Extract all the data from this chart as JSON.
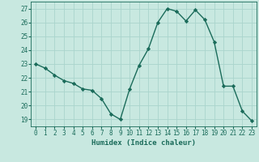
{
  "x": [
    0,
    1,
    2,
    3,
    4,
    5,
    6,
    7,
    8,
    9,
    10,
    11,
    12,
    13,
    14,
    15,
    16,
    17,
    18,
    19,
    20,
    21,
    22,
    23
  ],
  "y": [
    23.0,
    22.7,
    22.2,
    21.8,
    21.6,
    21.2,
    21.1,
    20.5,
    19.4,
    19.0,
    21.2,
    22.9,
    24.1,
    26.0,
    27.0,
    26.8,
    26.1,
    26.9,
    26.2,
    24.6,
    21.4,
    21.4,
    19.6,
    18.9
  ],
  "line_color": "#1a6b5a",
  "marker": "D",
  "markersize": 2.2,
  "linewidth": 1.0,
  "bg_color": "#c8e8e0",
  "grid_color": "#aad4cc",
  "xlabel": "Humidex (Indice chaleur)",
  "ylim": [
    18.5,
    27.5
  ],
  "yticks": [
    19,
    20,
    21,
    22,
    23,
    24,
    25,
    26,
    27
  ],
  "xticks": [
    0,
    1,
    2,
    3,
    4,
    5,
    6,
    7,
    8,
    9,
    10,
    11,
    12,
    13,
    14,
    15,
    16,
    17,
    18,
    19,
    20,
    21,
    22,
    23
  ],
  "tick_color": "#1a6b5a",
  "label_color": "#1a6b5a",
  "xlabel_fontsize": 6.5,
  "tick_fontsize": 5.5,
  "xlabel_fontweight": "bold"
}
